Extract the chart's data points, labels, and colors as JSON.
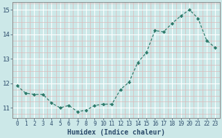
{
  "x": [
    0,
    1,
    2,
    3,
    4,
    5,
    6,
    7,
    8,
    9,
    10,
    11,
    12,
    13,
    14,
    15,
    16,
    17,
    18,
    19,
    20,
    21,
    22,
    23
  ],
  "y": [
    11.9,
    11.6,
    11.55,
    11.55,
    11.2,
    11.0,
    11.1,
    10.85,
    10.9,
    11.1,
    11.15,
    11.15,
    11.75,
    12.05,
    12.85,
    13.25,
    14.15,
    14.1,
    14.45,
    14.75,
    15.0,
    14.65,
    13.75,
    13.45
  ],
  "xlabel": "Humidex (Indice chaleur)",
  "xlim": [
    -0.5,
    23.5
  ],
  "ylim": [
    10.6,
    15.3
  ],
  "yticks": [
    11,
    12,
    13,
    14,
    15
  ],
  "xticks": [
    0,
    1,
    2,
    3,
    4,
    5,
    6,
    7,
    8,
    9,
    10,
    11,
    12,
    13,
    14,
    15,
    16,
    17,
    18,
    19,
    20,
    21,
    22,
    23
  ],
  "line_color": "#2d7a6a",
  "marker_color": "#2d7a6a",
  "bg_color": "#cce8e8",
  "grid_color_major": "#ffffff",
  "grid_color_minor": "#ddb8b8",
  "font_color": "#2a4a6a",
  "spine_color": "#888888"
}
